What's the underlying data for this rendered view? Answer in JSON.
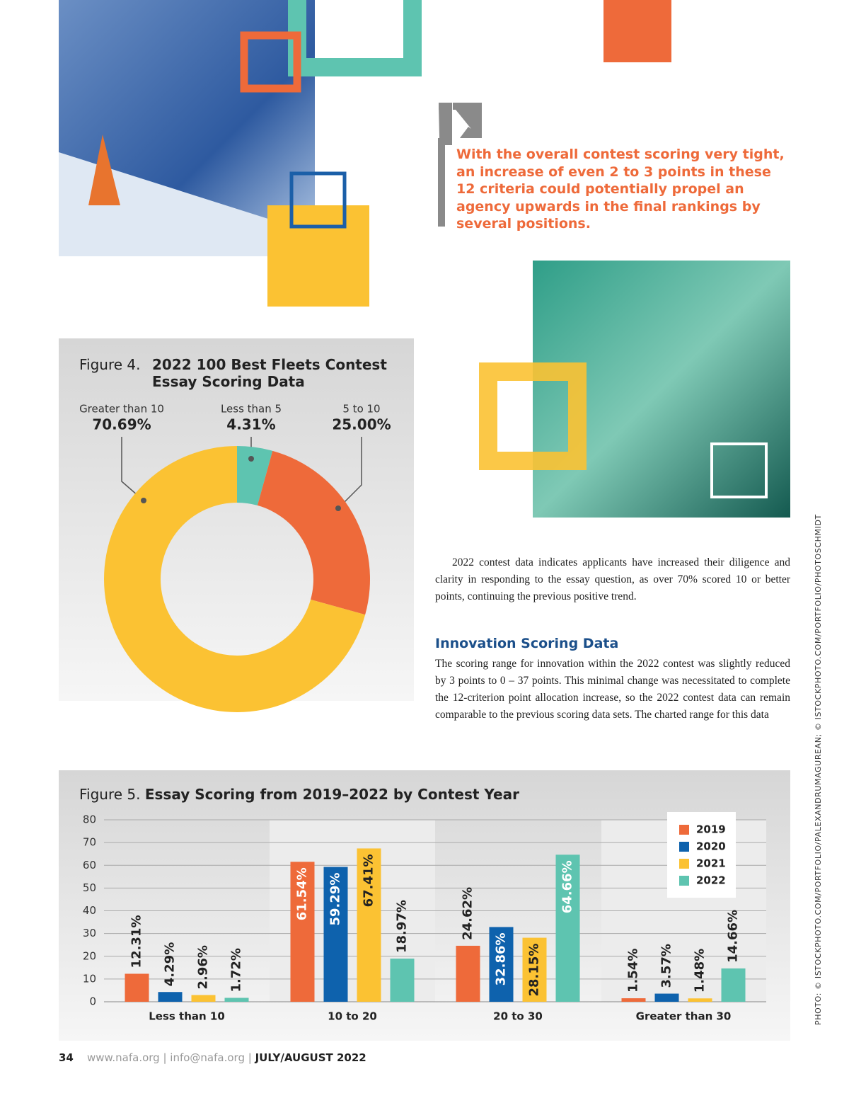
{
  "quote": "With the overall contest scoring very tight, an increase of even 2 to 3 points in these 12 criteria could potentially propel an agency upwards in the final rankings by several positions.",
  "body": {
    "paragraph": "2022 contest data indicates applicants have increased their diligence and clarity in responding to the essay question, as over 70% scored 10 or better points, continuing the previous positive trend.",
    "heading": "Innovation Scoring Data",
    "paragraph2": "The scoring range for innovation within the 2022 contest was slightly reduced by 3 points to 0 – 37 points. This minimal change was necessitated to complete the 12-criterion point allocation increase, so the 2022 contest data can remain comparable to the previous scoring data sets. The charted range for this data"
  },
  "chart_data": [
    {
      "type": "donut",
      "title_prefix": "Figure 4.",
      "title": "2022 100 Best Fleets Contest Essay Scoring Data",
      "categories": [
        "Less than 5",
        "5 to 10",
        "Greater than 10"
      ],
      "values": [
        4.31,
        25.0,
        70.69
      ],
      "value_labels": [
        "4.31%",
        "25.00%",
        "70.69%"
      ],
      "colors": [
        "#5ec4b0",
        "#ee6a3a",
        "#fbc233"
      ]
    },
    {
      "type": "bar",
      "title_prefix": "Figure 5.",
      "title": "Essay Scoring from 2019–2022 by Contest Year",
      "categories": [
        "Less than 10",
        "10 to 20",
        "20 to 30",
        "Greater than 30"
      ],
      "series": [
        {
          "name": "2019",
          "color": "#ee6a3a",
          "values": [
            12.31,
            61.54,
            24.62,
            1.54
          ],
          "value_labels": [
            "12.31%",
            "61.54%",
            "24.62%",
            "1.54%"
          ]
        },
        {
          "name": "2020",
          "color": "#0e62ad",
          "values": [
            4.29,
            59.29,
            32.86,
            3.57
          ],
          "value_labels": [
            "4.29%",
            "59.29%",
            "32.86%",
            "3.57%"
          ]
        },
        {
          "name": "2021",
          "color": "#fbc233",
          "values": [
            2.96,
            67.41,
            28.15,
            1.48
          ],
          "value_labels": [
            "2.96%",
            "67.41%",
            "28.15%",
            "1.48%"
          ]
        },
        {
          "name": "2022",
          "color": "#5ec4b0",
          "values": [
            1.72,
            18.97,
            64.66,
            14.66
          ],
          "value_labels": [
            "1.72%",
            "18.97%",
            "64.66%",
            "14.66%"
          ]
        }
      ],
      "ylim": [
        0,
        80
      ],
      "yticks": [
        0,
        10,
        20,
        30,
        40,
        50,
        60,
        70,
        80
      ],
      "grid": true,
      "legend": "upper right"
    }
  ],
  "footer": {
    "page": "34",
    "site": "www.nafa.org",
    "email": "info@nafa.org",
    "issue": "JULY/AUGUST 2022"
  },
  "credit": "PHOTO: © ISTOCKPHOTO.COM/PORTFOLIO/PALEXANDRUMAGUREAN; © ISTOCKPHOTO.COM/PORTFOLIO/PHOTOSCHMIDT"
}
